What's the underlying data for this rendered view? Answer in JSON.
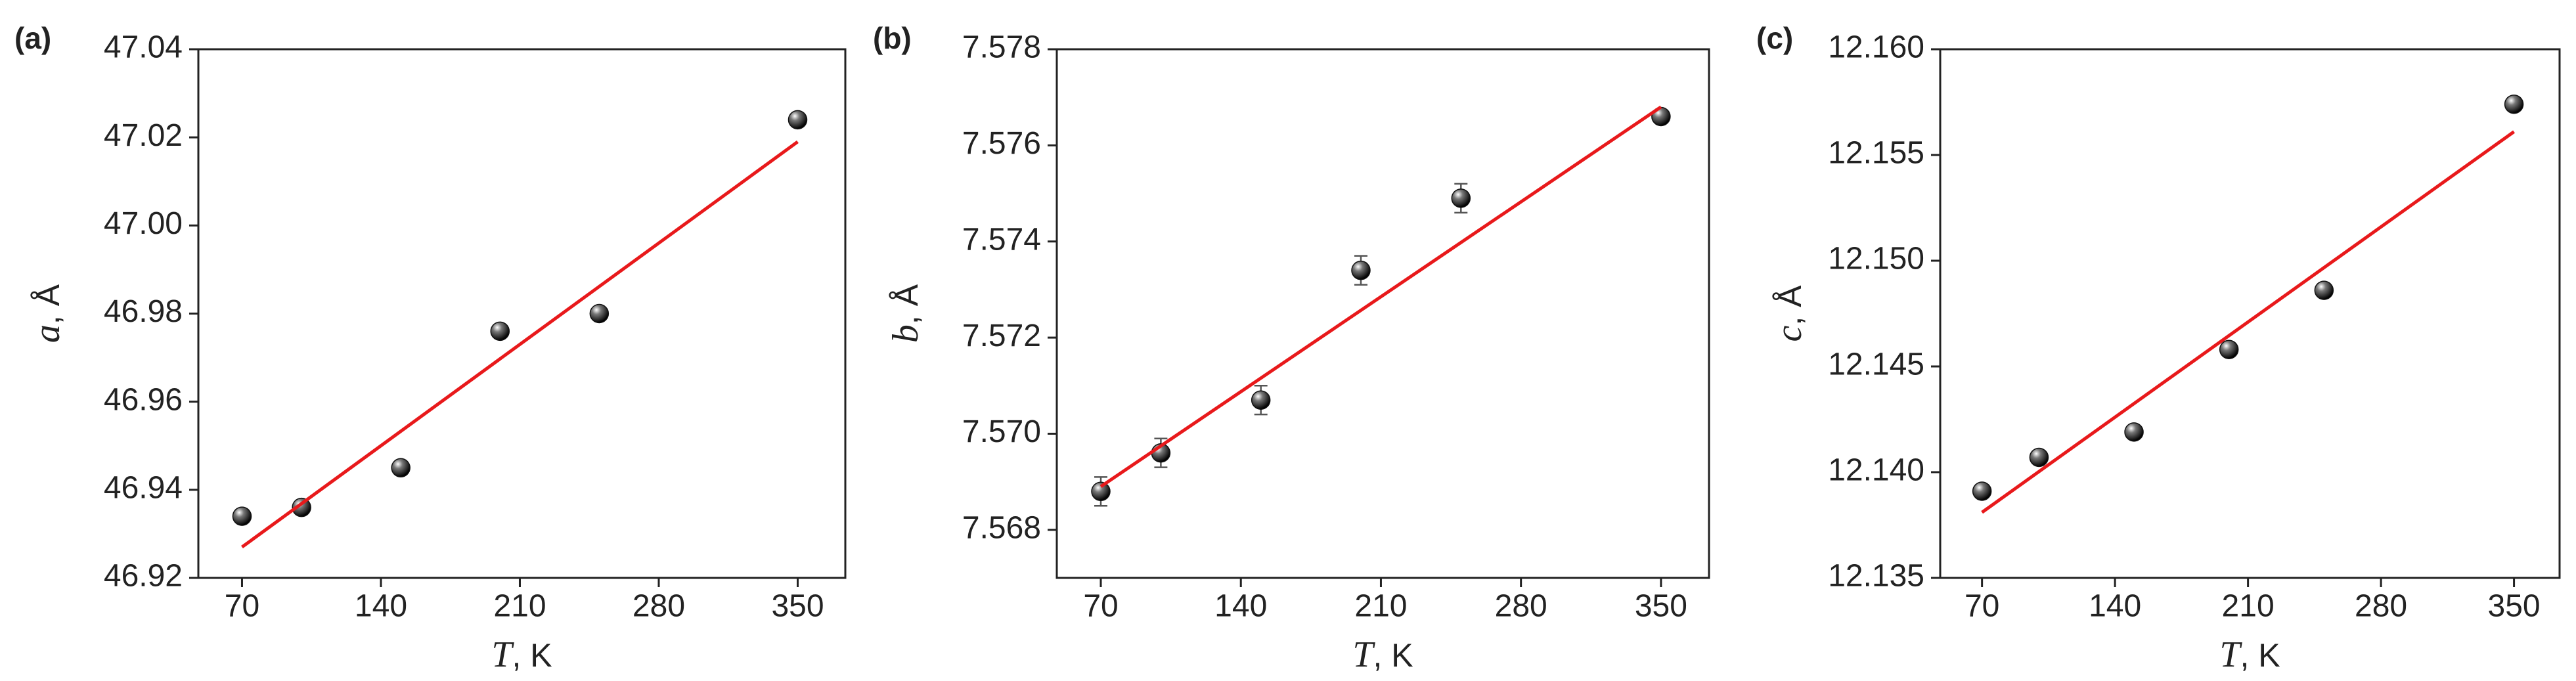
{
  "chart_data": [
    {
      "type": "scatter",
      "panel": "(a)",
      "ylabel_var": "a",
      "ylabel_unit": ", Å",
      "xlabel_var": "T",
      "xlabel_unit": ", K",
      "xlim": [
        48,
        374
      ],
      "xticks": [
        70,
        140,
        210,
        280,
        350
      ],
      "ylim": [
        46.92,
        47.04
      ],
      "yticks": [
        {
          "value": 46.92,
          "label": "46.92"
        },
        {
          "value": 46.94,
          "label": "46.94"
        },
        {
          "value": 46.96,
          "label": "46.96"
        },
        {
          "value": 46.98,
          "label": "46.98"
        },
        {
          "value": 47.0,
          "label": "47.00"
        },
        {
          "value": 47.02,
          "label": "47.02"
        },
        {
          "value": 47.04,
          "label": "47.04"
        }
      ],
      "series": [
        {
          "type": "scatter",
          "color": "#111111",
          "x": [
            70,
            100,
            150,
            200,
            250,
            350
          ],
          "values": [
            46.934,
            46.936,
            46.945,
            46.976,
            46.98,
            47.024
          ]
        },
        {
          "type": "line",
          "color": "#e8191b",
          "x": [
            70,
            350
          ],
          "values": [
            46.927,
            47.019
          ]
        }
      ]
    },
    {
      "type": "scatter",
      "panel": "(b)",
      "ylabel_var": "b",
      "ylabel_unit": ", Å",
      "xlabel_var": "T",
      "xlabel_unit": ", K",
      "xlim": [
        48,
        374
      ],
      "xticks": [
        70,
        140,
        210,
        280,
        350
      ],
      "ylim": [
        7.567,
        7.578
      ],
      "yticks": [
        {
          "value": 7.568,
          "label": "7.568"
        },
        {
          "value": 7.57,
          "label": "7.570"
        },
        7.572,
        7.574,
        7.576,
        7.578
      ],
      "series": [
        {
          "type": "scatter",
          "color": "#111111",
          "x": [
            70,
            100,
            150,
            200,
            250,
            350
          ],
          "values": [
            7.5688,
            7.5696,
            7.5707,
            7.5734,
            7.5749,
            7.5766
          ],
          "errors": [
            0.0003,
            0.0003,
            0.0003,
            0.0003,
            0.0003,
            0.0001
          ]
        },
        {
          "type": "line",
          "color": "#e8191b",
          "x": [
            70,
            350
          ],
          "values": [
            7.5689,
            7.5768
          ]
        }
      ]
    },
    {
      "type": "scatter",
      "panel": "(c)",
      "ylabel_var": "c",
      "ylabel_unit": ", Å",
      "xlabel_var": "T",
      "xlabel_unit": ", K",
      "xlim": [
        48,
        374
      ],
      "xticks": [
        70,
        140,
        210,
        280,
        350
      ],
      "ylim": [
        12.135,
        12.16
      ],
      "yticks": [
        12.135,
        {
          "value": 12.14,
          "label": "12.140"
        },
        12.145,
        {
          "value": 12.15,
          "label": "12.150"
        },
        12.155,
        {
          "value": 12.16,
          "label": "12.160"
        }
      ],
      "series": [
        {
          "type": "scatter",
          "color": "#111111",
          "x": [
            70,
            100,
            150,
            200,
            250,
            350
          ],
          "values": [
            12.1391,
            12.1407,
            12.1419,
            12.1458,
            12.1486,
            12.1574
          ]
        },
        {
          "type": "line",
          "color": "#e8191b",
          "x": [
            70,
            350
          ],
          "values": [
            12.1381,
            12.1561
          ]
        }
      ]
    }
  ]
}
